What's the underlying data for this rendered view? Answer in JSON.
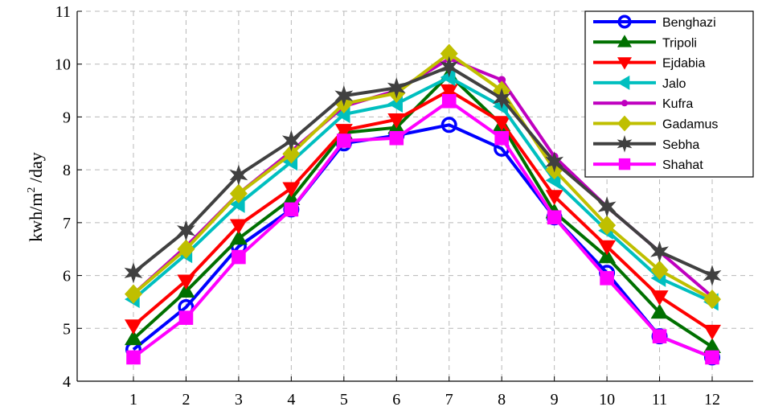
{
  "chart_data": {
    "type": "line",
    "ylabel_base": "kwh/m",
    "ylabel_sup": "2",
    "ylabel_tail": " /day",
    "x": [
      1,
      2,
      3,
      4,
      5,
      6,
      7,
      8,
      9,
      10,
      11,
      12
    ],
    "x_tick_labels": [
      "1",
      "2",
      "3",
      "4",
      "5",
      "6",
      "7",
      "8",
      "9",
      "10",
      "11",
      "12"
    ],
    "ylim": [
      4,
      11
    ],
    "y_ticks": [
      4,
      5,
      6,
      7,
      8,
      9,
      10,
      11
    ],
    "y_tick_labels": [
      "4",
      "5",
      "6",
      "7",
      "8",
      "9",
      "10",
      "11"
    ],
    "grid": true,
    "legend_position": "top-right",
    "series": [
      {
        "name": "Benghazi",
        "color": "#0000ff",
        "marker": "circle",
        "values": [
          4.6,
          5.4,
          6.55,
          7.25,
          8.5,
          8.65,
          8.85,
          8.4,
          7.1,
          6.05,
          4.85,
          4.45
        ]
      },
      {
        "name": "Tripoli",
        "color": "#007000",
        "marker": "triangle-up",
        "values": [
          4.8,
          5.7,
          6.7,
          7.45,
          8.7,
          8.8,
          9.8,
          8.85,
          7.2,
          6.35,
          5.3,
          4.65
        ]
      },
      {
        "name": "Ejdabia",
        "color": "#ff0000",
        "marker": "triangle-down",
        "values": [
          5.05,
          5.9,
          6.95,
          7.65,
          8.75,
          8.95,
          9.5,
          8.9,
          7.5,
          6.55,
          5.6,
          4.95
        ]
      },
      {
        "name": "Jalo",
        "color": "#00bfbf",
        "marker": "triangle-left",
        "values": [
          5.55,
          6.4,
          7.35,
          8.15,
          9.05,
          9.25,
          9.75,
          9.2,
          7.8,
          6.85,
          5.95,
          5.5
        ]
      },
      {
        "name": "Kufra",
        "color": "#bf00bf",
        "marker": "dot",
        "values": [
          5.65,
          6.55,
          7.55,
          8.35,
          9.2,
          9.5,
          10.1,
          9.7,
          8.25,
          7.3,
          6.45,
          5.6
        ]
      },
      {
        "name": "Gadamus",
        "color": "#bfbf00",
        "marker": "diamond",
        "values": [
          5.65,
          6.5,
          7.55,
          8.3,
          9.25,
          9.45,
          10.2,
          9.5,
          8.0,
          6.95,
          6.1,
          5.55
        ]
      },
      {
        "name": "Sebha",
        "color": "#404040",
        "marker": "star",
        "values": [
          6.05,
          6.85,
          7.9,
          8.55,
          9.4,
          9.55,
          9.95,
          9.35,
          8.15,
          7.3,
          6.45,
          6.0
        ]
      },
      {
        "name": "Shahat",
        "color": "#ff00ff",
        "marker": "square",
        "values": [
          4.45,
          5.2,
          6.35,
          7.25,
          8.55,
          8.6,
          9.3,
          8.6,
          7.1,
          5.95,
          4.85,
          4.45
        ]
      }
    ]
  }
}
